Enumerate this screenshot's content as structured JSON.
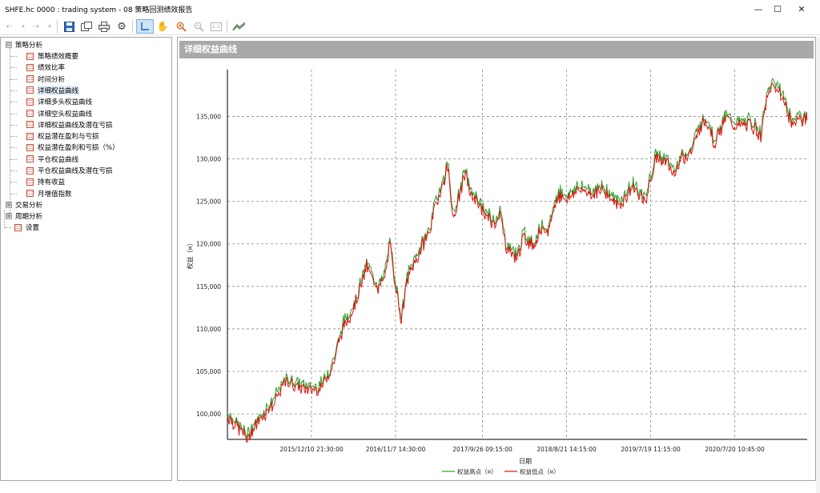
{
  "window": {
    "title": "SHFE.hc 0000 : trading system - 08 策略回测绩效报告",
    "controls": [
      "—",
      "☐",
      "✕"
    ]
  },
  "toolbar": {
    "icons": [
      "back-arrow-icon",
      "dropdown-icon",
      "forward-arrow-icon",
      "dropdown-icon",
      "save-icon",
      "copy-icon",
      "print-icon",
      "settings-gear-icon",
      "crosshair-cursor-icon",
      "hand-pan-icon",
      "zoom-in-icon",
      "zoom-out-icon",
      "fit-1-1-icon",
      "chart-brush-icon"
    ],
    "fit_label": "1:1"
  },
  "tree": {
    "root": {
      "label": "策略分析",
      "expander": "⊟"
    },
    "children": [
      {
        "label": "策略绩效概要",
        "selected": false
      },
      {
        "label": "绩效比率",
        "selected": false
      },
      {
        "label": "时间分析",
        "selected": false
      },
      {
        "label": "详细权益曲线",
        "selected": true
      },
      {
        "label": "详细多头权益曲线",
        "selected": false
      },
      {
        "label": "详细空头权益曲线",
        "selected": false
      },
      {
        "label": "详细权益曲线及潜在亏损",
        "selected": false
      },
      {
        "label": "权益潜在盈利与亏损",
        "selected": false
      },
      {
        "label": "权益潜在盈利和亏损（%）",
        "selected": false
      },
      {
        "label": "平仓权益曲线",
        "selected": false
      },
      {
        "label": "平仓权益曲线及潜在亏损",
        "selected": false
      },
      {
        "label": "持有收益",
        "selected": false
      },
      {
        "label": "月增值指数",
        "selected": false
      }
    ],
    "others": [
      {
        "label": "交易分析",
        "expander": "⊞"
      },
      {
        "label": "周期分析",
        "expander": "⊞"
      },
      {
        "label": "设置",
        "expander": ""
      }
    ]
  },
  "panel": {
    "title": "详细权益曲线"
  },
  "colors": {
    "high_series": "#2e9e2e",
    "low_series": "#e0110e",
    "grid": "#8a8a8a",
    "header_bg": "#a9a9a9"
  },
  "chart_data": {
    "type": "line",
    "xlabel": "日期",
    "ylabel": "权益（¤）",
    "x_tick_labels": [
      "2015/12/10 21:30:00",
      "2016/11/7 14:30:00",
      "2017/9/26 09:15:00",
      "2018/8/21 14:15:00",
      "2019/7/19 11:15:00",
      "2020/7/20 10:45:00"
    ],
    "y_ticks": [
      100000,
      105000,
      110000,
      115000,
      120000,
      125000,
      130000,
      135000
    ],
    "y_tick_labels": [
      "100,000",
      "105,000",
      "110,000",
      "115,000",
      "120,000",
      "125,000",
      "130,000",
      "135,000"
    ],
    "ylim": [
      97000,
      140500
    ],
    "grid": true,
    "legend_position": "bottom-center",
    "series": [
      {
        "name": "权益高点（¤）",
        "color": "#2e9e2e"
      },
      {
        "name": "权益低点（¤）",
        "color": "#e0110e"
      }
    ],
    "x": [
      0,
      0.02,
      0.035,
      0.05,
      0.08,
      0.1,
      0.14,
      0.16,
      0.18,
      0.2,
      0.22,
      0.24,
      0.26,
      0.27,
      0.28,
      0.3,
      0.31,
      0.33,
      0.35,
      0.36,
      0.375,
      0.38,
      0.39,
      0.41,
      0.42,
      0.43,
      0.44,
      0.46,
      0.47,
      0.48,
      0.5,
      0.51,
      0.53,
      0.54,
      0.55,
      0.57,
      0.59,
      0.6,
      0.62,
      0.63,
      0.65,
      0.67,
      0.68,
      0.7,
      0.72,
      0.74,
      0.76,
      0.77,
      0.78,
      0.8,
      0.81,
      0.82,
      0.83,
      0.84,
      0.86,
      0.88,
      0.9,
      0.92,
      0.93,
      0.94,
      0.955,
      0.965,
      0.975,
      0.985,
      0.99,
      1.0
    ],
    "values": [
      100000,
      98500,
      97300,
      99000,
      101500,
      104000,
      103000,
      103200,
      105500,
      110500,
      113000,
      117500,
      115000,
      116000,
      120000,
      111000,
      116000,
      119000,
      122000,
      125000,
      128000,
      129500,
      123000,
      128500,
      126000,
      125500,
      124000,
      122500,
      124000,
      120000,
      118500,
      121000,
      120000,
      122000,
      121000,
      126000,
      125500,
      126500,
      126500,
      126000,
      126500,
      125000,
      125000,
      127000,
      125000,
      130500,
      129500,
      128500,
      130000,
      131000,
      133000,
      134500,
      134500,
      132000,
      135000,
      134000,
      134500,
      133000,
      137000,
      139000,
      138000,
      136000,
      134000,
      135500,
      134500,
      135000
    ]
  }
}
